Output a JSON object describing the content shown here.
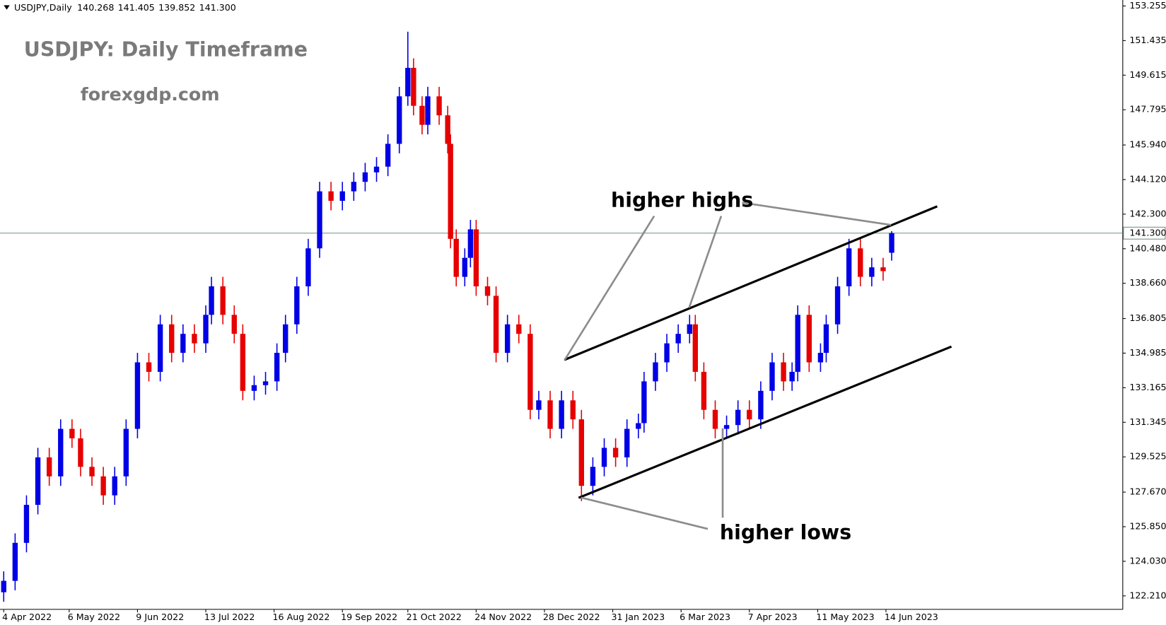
{
  "chart_data": {
    "type": "candlestick",
    "header": "USDJPY,Daily",
    "header_ohlc": [
      140.268,
      141.405,
      139.852,
      {
        "value": 141.3,
        "label": "141.300"
      }
    ],
    "title": "USDJPY: Daily Timeframe",
    "subtitle": "forexgdp.com",
    "annotations": [
      "higher highs",
      "higher lows"
    ],
    "up_color": "#0000e6",
    "down_color": "#e60000",
    "x": [
      0,
      4,
      8,
      12,
      16,
      20,
      24,
      27,
      31,
      35,
      39,
      43,
      47,
      51,
      55,
      59,
      63,
      67,
      71,
      73,
      77,
      81,
      84,
      88,
      92,
      96,
      99,
      103,
      107,
      111,
      115,
      119,
      123,
      127,
      131,
      135,
      139,
      142,
      144,
      147,
      149,
      153,
      156,
      157,
      159,
      162,
      164,
      166,
      170,
      173,
      177,
      181,
      185,
      188,
      192,
      196,
      200,
      203,
      207,
      211,
      215,
      219,
      223,
      225,
      229,
      233,
      237,
      241,
      243,
      246,
      250,
      254,
      258,
      262,
      266,
      270,
      274,
      277,
      279,
      283,
      287,
      289,
      293,
      297,
      301,
      305,
      309,
      312
    ],
    "open": [
      122.4,
      123,
      125,
      127,
      129.5,
      128.5,
      131,
      130.5,
      129,
      128.5,
      127.5,
      128.5,
      131,
      134.5,
      134,
      136.5,
      135,
      136,
      135.5,
      137,
      138.5,
      137,
      136,
      133,
      133.3,
      133.5,
      135,
      136.5,
      138.5,
      140.5,
      143.5,
      143,
      143.5,
      144,
      144.5,
      144.8,
      146,
      148.5,
      150,
      148,
      147,
      148.5,
      147.5,
      146,
      141,
      139,
      140,
      141.5,
      138.5,
      138,
      135,
      136.5,
      136,
      132,
      132.5,
      131,
      132.5,
      131.5,
      128,
      129,
      130,
      129.5,
      131,
      131.3,
      133.5,
      134.5,
      135.5,
      136,
      136.5,
      134,
      132,
      131,
      131.2,
      132,
      131.5,
      133,
      134.5,
      133.5,
      134,
      137,
      134.5,
      135,
      136.5,
      138.5,
      140.5,
      139,
      139.5,
      140.268
    ],
    "high": [
      123.5,
      125.5,
      127.5,
      130,
      130,
      131.5,
      131.5,
      131,
      129.5,
      129,
      129,
      131.5,
      135,
      135,
      137,
      137,
      136.5,
      136.5,
      137.5,
      139,
      139,
      137.5,
      136.5,
      133.8,
      134,
      135.5,
      137,
      139,
      141,
      144,
      144,
      144,
      144.5,
      145,
      145.3,
      146.5,
      149,
      151.9,
      150.5,
      148.5,
      149,
      149,
      148,
      146.5,
      141.5,
      140.5,
      142,
      142,
      139,
      138.5,
      137,
      137,
      136.5,
      133,
      133,
      133,
      133,
      132,
      129.5,
      130.5,
      130.5,
      131.5,
      131.8,
      134,
      135,
      136,
      136.5,
      137,
      137,
      134.5,
      132.5,
      131.7,
      132.5,
      132.5,
      133.5,
      135,
      135,
      134.5,
      137.5,
      137.5,
      135.5,
      137,
      139,
      141,
      141,
      140,
      140,
      141.405
    ],
    "low": [
      121.9,
      122.5,
      124.5,
      126.5,
      128,
      128,
      130,
      128.5,
      128,
      127,
      127,
      128,
      130.5,
      133.5,
      133.5,
      134.5,
      134.5,
      135,
      135,
      136.5,
      136.5,
      135.5,
      132.5,
      132.5,
      132.8,
      133,
      134.5,
      136,
      138,
      140,
      142.5,
      142.5,
      143,
      143.5,
      144,
      144.3,
      145.5,
      148,
      147.5,
      146.5,
      146.5,
      147,
      145.5,
      140.5,
      138.5,
      138.5,
      139.5,
      138,
      137.5,
      134.5,
      134.5,
      135.5,
      131.5,
      131.5,
      130.5,
      130.5,
      131,
      127.2,
      127.5,
      128.5,
      129,
      129,
      130.5,
      130.8,
      133,
      134,
      135,
      135.5,
      133.5,
      131.5,
      130.5,
      130.5,
      130.7,
      131,
      131,
      132.5,
      133,
      133,
      133.5,
      134,
      134,
      134.5,
      136,
      138,
      138.5,
      138.5,
      138.8,
      139.852
    ],
    "close": [
      123,
      125,
      127,
      129.5,
      128.5,
      131,
      130.5,
      129,
      128.5,
      127.5,
      128.5,
      131,
      134.5,
      134,
      136.5,
      135,
      136,
      135.5,
      137,
      138.5,
      137,
      136,
      133,
      133.3,
      133.5,
      135,
      136.5,
      138.5,
      140.5,
      143.5,
      143,
      143.5,
      144,
      144.5,
      144.8,
      146,
      148.5,
      150,
      148,
      147,
      148.5,
      147.5,
      146,
      141,
      139,
      140,
      141.5,
      138.5,
      138,
      135,
      136.5,
      136,
      132,
      132.5,
      131,
      132.5,
      131.5,
      128,
      129,
      130,
      129.5,
      131,
      131.3,
      133.5,
      134.5,
      135.5,
      136,
      136.5,
      134,
      132,
      131,
      131.2,
      132,
      131.5,
      133,
      134.5,
      133.5,
      134,
      137,
      134.5,
      135,
      136.5,
      138.5,
      140.5,
      139,
      139.5,
      139.3,
      141.3
    ],
    "xlim": [
      -1.3,
      393.2
    ],
    "ylim": [
      121.5,
      153.57
    ],
    "xticks": [
      {
        "value": 0,
        "label": "4 Apr 2022"
      },
      {
        "value": 23,
        "label": "6 May 2022"
      },
      {
        "value": 47,
        "label": "9 Jun 2022"
      },
      {
        "value": 71,
        "label": "13 Jul 2022"
      },
      {
        "value": 95,
        "label": "16 Aug 2022"
      },
      {
        "value": 119,
        "label": "19 Sep 2022"
      },
      {
        "value": 142,
        "label": "21 Oct 2022"
      },
      {
        "value": 166,
        "label": "24 Nov 2022"
      },
      {
        "value": 190,
        "label": "28 Dec 2022"
      },
      {
        "value": 214,
        "label": "31 Jan 2023"
      },
      {
        "value": 238,
        "label": "6 Mar 2023"
      },
      {
        "value": 262,
        "label": "7 Apr 2023"
      },
      {
        "value": 286,
        "label": "11 May 2023"
      },
      {
        "value": 310,
        "label": "14 Jun 2023"
      }
    ],
    "yticks": [
      153.255,
      151.435,
      149.615,
      147.795,
      {
        "value": 145.94,
        "label": "145.940"
      },
      {
        "value": 144.12,
        "label": "144.120"
      },
      {
        "value": 142.3,
        "label": "142.300"
      },
      {
        "value": 140.48,
        "label": "140.480"
      },
      {
        "value": 138.66,
        "label": "138.660"
      },
      136.805,
      134.985,
      133.165,
      131.345,
      129.525,
      {
        "value": 127.67,
        "label": "127.670"
      },
      {
        "value": 125.85,
        "label": "125.850"
      },
      {
        "value": 124.03,
        "label": "124.030"
      },
      {
        "value": 122.21,
        "label": "122.210"
      }
    ],
    "price_line": {
      "value": 141.3,
      "label": "141.300",
      "color": "#6f8f7f"
    },
    "trendlines": [
      {
        "x": [
          197,
          328
        ],
        "y": [
          134.63,
          142.71
        ]
      },
      {
        "x": [
          202,
          333
        ],
        "y": [
          127.37,
          135.33
        ]
      }
    ]
  }
}
